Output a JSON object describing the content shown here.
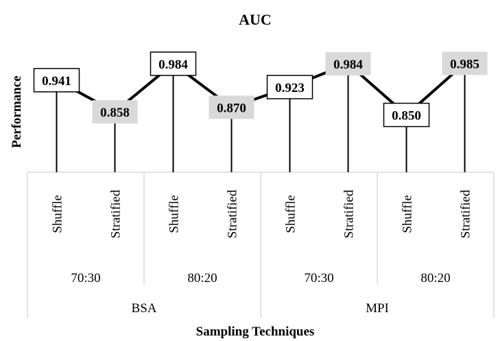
{
  "chart_data": {
    "type": "line",
    "title": "AUC",
    "ylabel": "Performance",
    "xlabel": "Sampling Techniques",
    "ylim": [
      0.7,
      1.0
    ],
    "grid": false,
    "legend": "none",
    "series": [
      {
        "values": [
          0.941,
          0.858,
          0.984,
          0.87,
          0.923,
          0.984,
          0.85,
          0.985
        ],
        "labels": [
          "0.941",
          "0.858",
          "0.984",
          "0.870",
          "0.923",
          "0.984",
          "0.850",
          "0.985"
        ],
        "label_styles": [
          "box",
          "shaded",
          "box",
          "shaded",
          "box",
          "shaded",
          "box",
          "shaded"
        ]
      }
    ],
    "categories": [
      {
        "technique": "Shuffle",
        "split": "70:30",
        "dataset": "BSA"
      },
      {
        "technique": "Stratified",
        "split": "70:30",
        "dataset": "BSA"
      },
      {
        "technique": "Shuffle",
        "split": "80:20",
        "dataset": "BSA"
      },
      {
        "technique": "Stratified",
        "split": "80:20",
        "dataset": "BSA"
      },
      {
        "technique": "Shuffle",
        "split": "70:30",
        "dataset": "MPI"
      },
      {
        "technique": "Stratified",
        "split": "70:30",
        "dataset": "MPI"
      },
      {
        "technique": "Shuffle",
        "split": "80:20",
        "dataset": "MPI"
      },
      {
        "technique": "Stratified",
        "split": "80:20",
        "dataset": "MPI"
      }
    ],
    "split_groups": [
      "70:30",
      "80:20",
      "70:30",
      "80:20"
    ],
    "dataset_groups": [
      "BSA",
      "MPI"
    ],
    "colors": {
      "line": "#000000",
      "drop_line": "#000000",
      "box_fill": "#ffffff",
      "box_stroke": "#000000",
      "shaded_fill": "#d9d9d9",
      "axis_divider": "#d9d9d9",
      "text": "#000000"
    }
  }
}
